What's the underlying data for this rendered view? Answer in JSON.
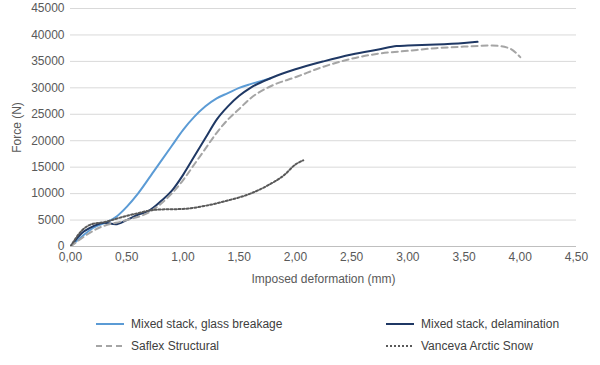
{
  "chart_data": {
    "type": "line",
    "x_label": "Imposed deformation (mm)",
    "y_label": "Force (N)",
    "xlim": [
      0,
      4.5
    ],
    "xticks": [
      {
        "value": 0,
        "label": "0,00"
      },
      {
        "value": 0.5,
        "label": "0,50"
      },
      {
        "value": 1,
        "label": "1,00"
      },
      {
        "value": 1.5,
        "label": "1,50"
      },
      {
        "value": 2,
        "label": "2,00"
      },
      {
        "value": 2.5,
        "label": "2,50"
      },
      {
        "value": 3,
        "label": "3,00"
      },
      {
        "value": 3.5,
        "label": "3,50"
      },
      {
        "value": 4,
        "label": "4,00"
      },
      {
        "value": 4.5,
        "label": "4,50"
      }
    ],
    "ylim": [
      0,
      45000
    ],
    "yticks": [
      0,
      5000,
      10000,
      15000,
      20000,
      25000,
      30000,
      35000,
      40000,
      45000
    ],
    "grid": true,
    "legend": "bottom",
    "series": [
      {
        "name": "Mixed stack, glass breakage",
        "color": "#5b9bd5",
        "line_style": "solid",
        "x": [
          0,
          0.2,
          0.4,
          0.5,
          0.6,
          0.75,
          0.9,
          1.0,
          1.1,
          1.2,
          1.3,
          1.4,
          1.5,
          1.6,
          1.7,
          1.78
        ],
        "values": [
          0,
          3500,
          5500,
          7500,
          10000,
          14500,
          19000,
          22000,
          24500,
          26500,
          28000,
          29000,
          30000,
          30700,
          31300,
          31800
        ]
      },
      {
        "name": "Mixed stack, delamination",
        "color": "#1f3864",
        "line_style": "solid",
        "x": [
          0,
          0.1,
          0.2,
          0.3,
          0.4,
          0.5,
          0.6,
          0.7,
          0.8,
          0.9,
          1.0,
          1.1,
          1.2,
          1.3,
          1.4,
          1.5,
          1.6,
          1.8,
          2.0,
          2.25,
          2.5,
          2.75,
          2.9,
          3.0,
          3.25,
          3.5,
          3.62
        ],
        "values": [
          0,
          2500,
          3800,
          4500,
          4200,
          5000,
          6000,
          6800,
          8500,
          10500,
          13500,
          17000,
          20500,
          24000,
          26500,
          28500,
          30000,
          32000,
          33500,
          35000,
          36300,
          37300,
          37900,
          38000,
          38200,
          38500,
          38700
        ]
      },
      {
        "name": "Saflex Structural",
        "color": "#a5a5a5",
        "line_style": "dashed",
        "x": [
          0,
          0.25,
          0.5,
          0.7,
          0.8,
          0.9,
          1.0,
          1.1,
          1.2,
          1.3,
          1.4,
          1.5,
          1.6,
          1.8,
          2.0,
          2.25,
          2.5,
          2.75,
          3.0,
          3.25,
          3.5,
          3.75,
          3.9,
          4.0
        ],
        "values": [
          0,
          3500,
          5000,
          6500,
          8000,
          10000,
          12500,
          15500,
          18500,
          21500,
          24000,
          26000,
          28000,
          30500,
          32000,
          34000,
          35500,
          36500,
          37000,
          37500,
          37800,
          38000,
          37500,
          35800
        ]
      },
      {
        "name": "Vanceva Arctic Snow",
        "color": "#595959",
        "line_style": "dotted",
        "x": [
          0,
          0.1,
          0.2,
          0.3,
          0.4,
          0.5,
          0.6,
          0.7,
          0.8,
          1.0,
          1.2,
          1.4,
          1.6,
          1.75,
          1.9,
          2.0,
          2.07
        ],
        "values": [
          0,
          3000,
          4300,
          4600,
          5200,
          5800,
          6300,
          6800,
          7000,
          7100,
          7700,
          8700,
          10000,
          11500,
          13500,
          15500,
          16300
        ]
      }
    ]
  }
}
